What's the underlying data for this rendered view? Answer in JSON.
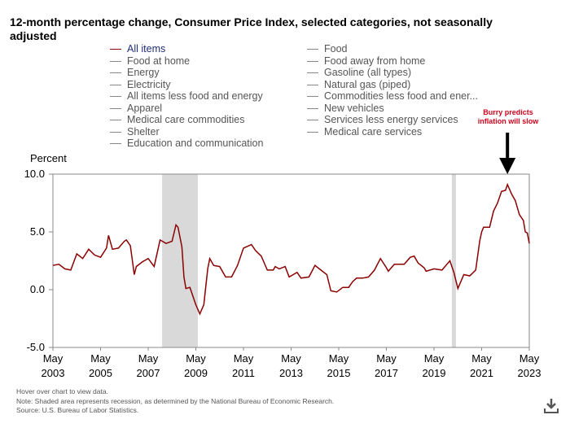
{
  "chart_data": {
    "type": "line",
    "title": "12-month percentage change, Consumer Price Index, selected categories, not seasonally adjusted",
    "y_label": "Percent",
    "x": [
      "2003-05",
      "2003-08",
      "2003-11",
      "2004-02",
      "2004-05",
      "2004-08",
      "2004-11",
      "2005-02",
      "2005-05",
      "2005-08",
      "2005-09",
      "2005-11",
      "2006-02",
      "2006-05",
      "2006-06",
      "2006-08",
      "2006-10",
      "2006-11",
      "2007-02",
      "2007-05",
      "2007-08",
      "2007-11",
      "2008-02",
      "2008-05",
      "2008-07",
      "2008-08",
      "2008-10",
      "2008-11",
      "2008-12",
      "2009-02",
      "2009-05",
      "2009-07",
      "2009-09",
      "2009-11",
      "2009-12",
      "2010-02",
      "2010-05",
      "2010-08",
      "2010-11",
      "2011-02",
      "2011-05",
      "2011-09",
      "2011-11",
      "2012-02",
      "2012-05",
      "2012-08",
      "2012-09",
      "2012-11",
      "2013-02",
      "2013-04",
      "2013-08",
      "2013-10",
      "2014-02",
      "2014-05",
      "2014-08",
      "2014-11",
      "2015-01",
      "2015-04",
      "2015-07",
      "2015-10",
      "2015-12",
      "2016-02",
      "2016-05",
      "2016-08",
      "2016-11",
      "2017-02",
      "2017-05",
      "2017-06",
      "2017-09",
      "2017-11",
      "2018-02",
      "2018-05",
      "2018-07",
      "2018-09",
      "2018-12",
      "2019-01",
      "2019-05",
      "2019-09",
      "2019-12",
      "2020-01",
      "2020-03",
      "2020-05",
      "2020-08",
      "2020-11",
      "2021-02",
      "2021-04",
      "2021-05",
      "2021-06",
      "2021-09",
      "2021-11",
      "2022-01",
      "2022-03",
      "2022-05",
      "2022-06",
      "2022-08",
      "2022-10",
      "2022-12",
      "2023-02",
      "2023-03",
      "2023-04",
      "2023-05"
    ],
    "series": [
      {
        "name": "All items",
        "color": "#8b0000",
        "values": [
          2.1,
          2.2,
          1.8,
          1.7,
          3.1,
          2.7,
          3.5,
          3.0,
          2.8,
          3.6,
          4.7,
          3.5,
          3.6,
          4.2,
          4.3,
          3.8,
          1.3,
          2.0,
          2.4,
          2.7,
          2.0,
          4.3,
          4.0,
          4.2,
          5.6,
          5.4,
          3.7,
          1.1,
          0.1,
          0.2,
          -1.3,
          -2.1,
          -1.3,
          1.8,
          2.7,
          2.1,
          2.0,
          1.1,
          1.1,
          2.1,
          3.6,
          3.9,
          3.4,
          2.9,
          1.7,
          1.7,
          2.0,
          1.8,
          2.0,
          1.1,
          1.5,
          1.0,
          1.1,
          2.1,
          1.7,
          1.3,
          -0.1,
          -0.2,
          0.2,
          0.2,
          0.7,
          1.0,
          1.0,
          1.1,
          1.7,
          2.7,
          1.9,
          1.6,
          2.2,
          2.2,
          2.2,
          2.8,
          2.9,
          2.3,
          1.9,
          1.6,
          1.8,
          1.7,
          2.3,
          2.5,
          1.5,
          0.1,
          1.3,
          1.2,
          1.7,
          4.2,
          5.0,
          5.4,
          5.4,
          6.8,
          7.5,
          8.5,
          8.6,
          9.1,
          8.3,
          7.7,
          6.5,
          6.0,
          5.0,
          4.9,
          4.0
        ]
      }
    ],
    "other_series": [
      "Food",
      "Food at home",
      "Food away from home",
      "Energy",
      "Gasoline (all types)",
      "Electricity",
      "Natural gas (piped)",
      "All items less food and energy",
      "Commodities less food and ener...",
      "Apparel",
      "New vehicles",
      "Medical care commodities",
      "Services less energy services",
      "Shelter",
      "Medical care services",
      "Education and communication"
    ],
    "recessions": [
      {
        "start": "2007-12",
        "end": "2009-06"
      },
      {
        "start": "2020-02",
        "end": "2020-04"
      }
    ],
    "xlim": [
      "2003-05",
      "2023-05"
    ],
    "xticks": [
      {
        "value": "2003-05",
        "label": "May 2003"
      },
      {
        "value": "2005-05",
        "label": "May 2005"
      },
      {
        "value": "2007-05",
        "label": "May 2007"
      },
      {
        "value": "2009-05",
        "label": "May 2009"
      },
      {
        "value": "2011-05",
        "label": "May 2011"
      },
      {
        "value": "2013-05",
        "label": "May 2013"
      },
      {
        "value": "2015-05",
        "label": "May 2015"
      },
      {
        "value": "2017-05",
        "label": "May 2017"
      },
      {
        "value": "2019-05",
        "label": "May 2019"
      },
      {
        "value": "2021-05",
        "label": "May 2021"
      },
      {
        "value": "2023-05",
        "label": "May 2023"
      }
    ],
    "ylim": [
      -5,
      10
    ],
    "yticks": [
      {
        "value": -5,
        "label": "-5.0"
      },
      {
        "value": 0,
        "label": "0.0"
      },
      {
        "value": 5,
        "label": "5.0"
      },
      {
        "value": 10,
        "label": "10.0"
      }
    ],
    "annotation": {
      "text": "Burry predicts inflation will slow",
      "x": "2022-06"
    },
    "notes": [
      "Hover over chart to view data.",
      "Note: Shaded area represents recession, as determined by the National Bureau of Economic Research.",
      "Source: U.S. Bureau of Labor Statistics."
    ]
  }
}
